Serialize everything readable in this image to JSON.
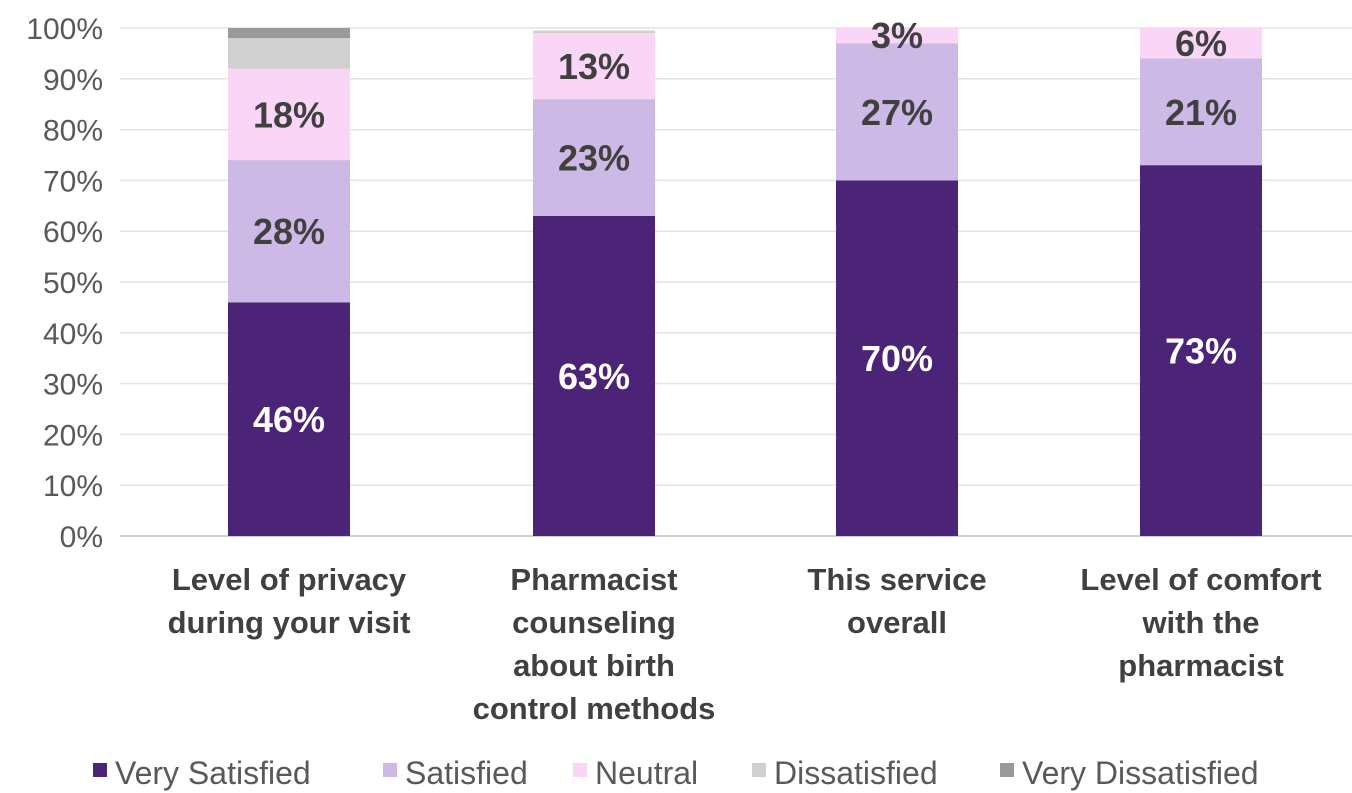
{
  "chart_data": {
    "type": "bar",
    "stacked": true,
    "title": "",
    "xlabel": "",
    "ylabel": "",
    "ylim": [
      0,
      100
    ],
    "y_ticks": [
      "0%",
      "10%",
      "20%",
      "30%",
      "40%",
      "50%",
      "60%",
      "70%",
      "80%",
      "90%",
      "100%"
    ],
    "grid": true,
    "legend_position": "bottom",
    "categories": [
      [
        "Level of privacy",
        "during your visit"
      ],
      [
        "Pharmacist",
        "counseling",
        "about birth",
        "control methods"
      ],
      [
        "This service",
        "overall"
      ],
      [
        "Level of comfort",
        "with the",
        "pharmacist"
      ]
    ],
    "series": [
      {
        "name": "Very Satisfied",
        "color": "#4b2478",
        "label_color": "#ffffff",
        "values": [
          46,
          63,
          70,
          73
        ],
        "labels": [
          "46%",
          "63%",
          "70%",
          "73%"
        ]
      },
      {
        "name": "Satisfied",
        "color": "#cdb9e6",
        "label_color": "#404040",
        "values": [
          28,
          23,
          27,
          21
        ],
        "labels": [
          "28%",
          "23%",
          "27%",
          "21%"
        ]
      },
      {
        "name": "Neutral",
        "color": "#f9d6f6",
        "label_color": "#404040",
        "values": [
          18,
          13,
          3,
          6
        ],
        "labels": [
          "18%",
          "13%",
          "3%",
          "6%"
        ]
      },
      {
        "name": "Dissatisfied",
        "color": "#d0d0d0",
        "label_color": "#404040",
        "values": [
          6,
          0.5,
          0,
          0
        ],
        "labels": [
          "",
          "",
          "",
          ""
        ]
      },
      {
        "name": "Very Dissatisfied",
        "color": "#9a9a9a",
        "label_color": "#404040",
        "values": [
          2,
          0,
          0,
          0
        ],
        "labels": [
          "",
          "",
          "",
          ""
        ]
      }
    ]
  }
}
